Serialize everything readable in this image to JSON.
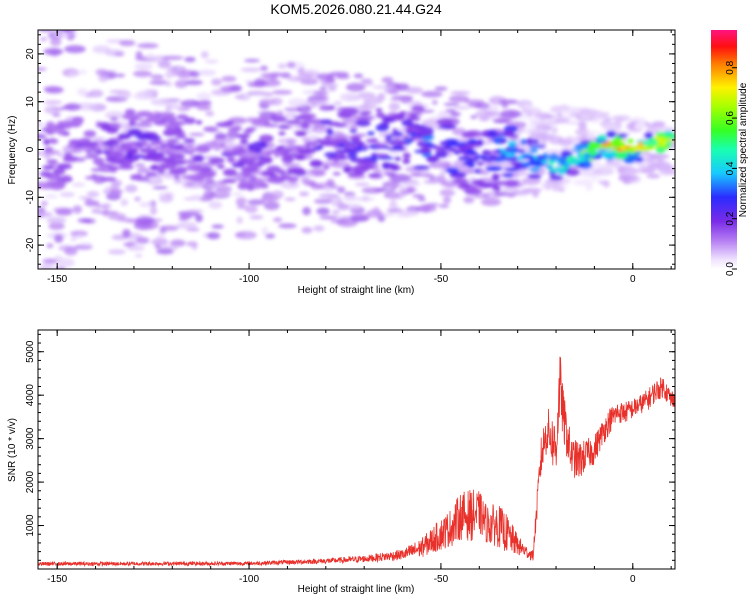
{
  "chart_data": [
    {
      "type": "heatmap",
      "title": "KOM5.2026.080.21.44.G24",
      "xlabel": "Height of straight line (km)",
      "ylabel": "Frequency (Hz)",
      "xlim": [
        -155,
        11
      ],
      "ylim": [
        -25,
        25
      ],
      "xticks": [
        -150,
        -100,
        -50,
        0
      ],
      "xtick_labels": [
        "-150",
        "-100",
        "-50",
        "0"
      ],
      "yticks": [
        20,
        10,
        0,
        -10,
        -20
      ],
      "ytick_labels": [
        "20",
        "10",
        "0",
        "-10",
        "-20"
      ],
      "colorbar": {
        "label": "Normalized spectral amplitude",
        "range": [
          0.0,
          0.95
        ],
        "ticks": [
          0.0,
          0.2,
          0.4,
          0.6,
          0.8
        ],
        "tick_labels": [
          "0.0",
          "0.2",
          "0.4",
          "0.6",
          "0.8"
        ]
      },
      "ridge": {
        "x": [
          -150,
          -140,
          -130,
          -120,
          -110,
          -100,
          -90,
          -80,
          -70,
          -60,
          -50,
          -45,
          -40,
          -35,
          -30,
          -25,
          -20,
          -15,
          -10,
          -5,
          0,
          5,
          10
        ],
        "freq": [
          -1,
          0,
          1,
          0,
          1,
          -1,
          0,
          2,
          1,
          2,
          1,
          -1,
          -3,
          -1,
          0,
          -2,
          -4,
          -2,
          0,
          1,
          0,
          1,
          2
        ],
        "amplitude": [
          0.1,
          0.12,
          0.14,
          0.13,
          0.13,
          0.14,
          0.16,
          0.18,
          0.2,
          0.24,
          0.26,
          0.28,
          0.24,
          0.3,
          0.34,
          0.4,
          0.44,
          0.55,
          0.72,
          0.85,
          0.78,
          0.8,
          0.65
        ]
      }
    },
    {
      "type": "line",
      "title": "",
      "xlabel": "Height of straight line (km)",
      "ylabel": "SNR (10 * v/v)",
      "xlim": [
        -155,
        11
      ],
      "ylim": [
        0,
        5500
      ],
      "xticks": [
        -150,
        -100,
        -50,
        0
      ],
      "xtick_labels": [
        "-150",
        "-100",
        "-50",
        "0"
      ],
      "yticks": [
        1000,
        2000,
        3000,
        4000,
        5000
      ],
      "ytick_labels": [
        "1000",
        "2000",
        "3000",
        "4000",
        "5000"
      ],
      "color": "#e8312b",
      "envelope": {
        "x": [
          -155,
          -100,
          -80,
          -70,
          -60,
          -55,
          -50,
          -47,
          -45,
          -42,
          -40,
          -38,
          -35,
          -33,
          -30,
          -28,
          -26,
          -24,
          -23,
          -22,
          -21,
          -20,
          -19,
          -18,
          -16,
          -14,
          -12,
          -10,
          -8,
          -6,
          -4,
          -2,
          0,
          2,
          4,
          6,
          8,
          10,
          11
        ],
        "base": [
          100,
          110,
          160,
          200,
          280,
          400,
          650,
          800,
          1000,
          1000,
          1100,
          850,
          800,
          650,
          450,
          350,
          250,
          2300,
          2800,
          3000,
          2700,
          2500,
          4000,
          3200,
          2400,
          2300,
          2500,
          2600,
          3000,
          3300,
          3500,
          3500,
          3600,
          3700,
          3800,
          4000,
          4100,
          3800,
          3900
        ],
        "amplitude": [
          90,
          90,
          120,
          160,
          250,
          450,
          750,
          900,
          1100,
          1200,
          1000,
          900,
          1000,
          900,
          500,
          300,
          250,
          1000,
          900,
          1000,
          1200,
          1400,
          1500,
          1200,
          900,
          900,
          700,
          700,
          600,
          600,
          500,
          500,
          450,
          450,
          500,
          500,
          500,
          450,
          450
        ]
      }
    }
  ]
}
